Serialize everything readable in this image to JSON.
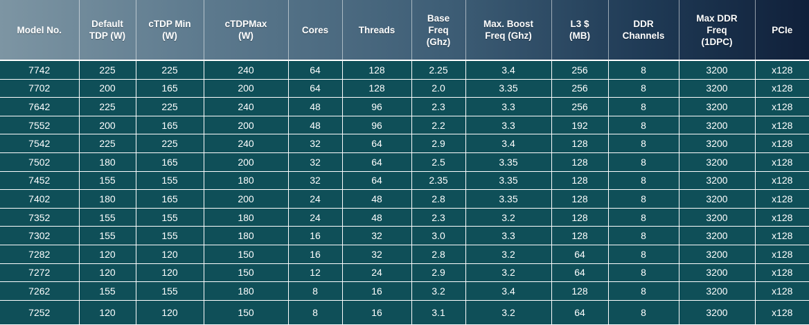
{
  "headers": [
    [
      "Model No."
    ],
    [
      "Default",
      "TDP (W)"
    ],
    [
      "cTDP Min",
      "(W)"
    ],
    [
      "cTDPMax",
      "(W)"
    ],
    [
      "Cores"
    ],
    [
      "Threads"
    ],
    [
      "Base",
      "Freq",
      "(Ghz)"
    ],
    [
      "Max. Boost",
      "Freq (Ghz)"
    ],
    [
      "L3 $",
      "(MB)"
    ],
    [
      "DDR",
      "Channels"
    ],
    [
      "Max DDR",
      "Freq",
      "(1DPC)"
    ],
    [
      "PCIe"
    ]
  ],
  "rows": [
    [
      "7742",
      "225",
      "225",
      "240",
      "64",
      "128",
      "2.25",
      "3.4",
      "256",
      "8",
      "3200",
      "x128"
    ],
    [
      "7702",
      "200",
      "165",
      "200",
      "64",
      "128",
      "2.0",
      "3.35",
      "256",
      "8",
      "3200",
      "x128"
    ],
    [
      "7642",
      "225",
      "225",
      "240",
      "48",
      "96",
      "2.3",
      "3.3",
      "256",
      "8",
      "3200",
      "x128"
    ],
    [
      "7552",
      "200",
      "165",
      "200",
      "48",
      "96",
      "2.2",
      "3.3",
      "192",
      "8",
      "3200",
      "x128"
    ],
    [
      "7542",
      "225",
      "225",
      "240",
      "32",
      "64",
      "2.9",
      "3.4",
      "128",
      "8",
      "3200",
      "x128"
    ],
    [
      "7502",
      "180",
      "165",
      "200",
      "32",
      "64",
      "2.5",
      "3.35",
      "128",
      "8",
      "3200",
      "x128"
    ],
    [
      "7452",
      "155",
      "155",
      "180",
      "32",
      "64",
      "2.35",
      "3.35",
      "128",
      "8",
      "3200",
      "x128"
    ],
    [
      "7402",
      "180",
      "165",
      "200",
      "24",
      "48",
      "2.8",
      "3.35",
      "128",
      "8",
      "3200",
      "x128"
    ],
    [
      "7352",
      "155",
      "155",
      "180",
      "24",
      "48",
      "2.3",
      "3.2",
      "128",
      "8",
      "3200",
      "x128"
    ],
    [
      "7302",
      "155",
      "155",
      "180",
      "16",
      "32",
      "3.0",
      "3.3",
      "128",
      "8",
      "3200",
      "x128"
    ],
    [
      "7282",
      "120",
      "120",
      "150",
      "16",
      "32",
      "2.8",
      "3.2",
      "64",
      "8",
      "3200",
      "x128"
    ],
    [
      "7272",
      "120",
      "120",
      "150",
      "12",
      "24",
      "2.9",
      "3.2",
      "64",
      "8",
      "3200",
      "x128"
    ],
    [
      "7262",
      "155",
      "155",
      "180",
      "8",
      "16",
      "3.2",
      "3.4",
      "128",
      "8",
      "3200",
      "x128"
    ],
    [
      "7252",
      "120",
      "120",
      "150",
      "8",
      "16",
      "3.1",
      "3.2",
      "64",
      "8",
      "3200",
      "x128"
    ]
  ],
  "colors": {
    "row_background": "#0f4f58",
    "header_gradient_start": "#7d95a3",
    "header_gradient_end": "#10203a",
    "text": "#ffffff"
  }
}
